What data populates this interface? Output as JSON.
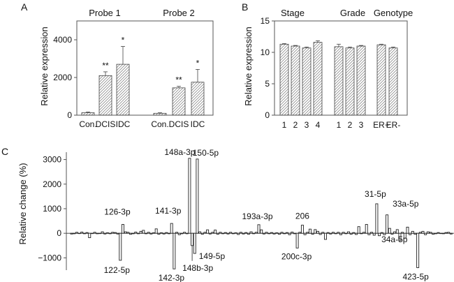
{
  "panels": [
    {
      "letter": "A"
    },
    {
      "letter": "B"
    },
    {
      "letter": "C"
    }
  ],
  "chart_data": [
    {
      "type": "bar",
      "panel": "A",
      "ylabel": "Relative expression",
      "ylim": [
        0,
        5000
      ],
      "yticks": [
        0,
        2000,
        4000
      ],
      "groups": [
        {
          "title": "Probe 1",
          "categories": [
            "Con.",
            "DCIS",
            "IDC"
          ],
          "values": [
            130,
            2100,
            2700
          ],
          "errors": [
            40,
            200,
            950
          ],
          "significance": [
            "",
            "**",
            "*"
          ]
        },
        {
          "title": "Probe 2",
          "categories": [
            "Con.",
            "DCIS",
            "IDC"
          ],
          "values": [
            100,
            1450,
            1750
          ],
          "errors": [
            30,
            80,
            680
          ],
          "significance": [
            "",
            "**",
            "*"
          ]
        }
      ]
    },
    {
      "type": "bar",
      "panel": "B",
      "ylabel": "Relative expression",
      "ylim": [
        0,
        15
      ],
      "yticks": [
        0,
        5,
        10,
        15
      ],
      "groups": [
        {
          "title": "Stage",
          "categories": [
            "1",
            "2",
            "3",
            "4"
          ],
          "values": [
            11.3,
            11.0,
            10.7,
            11.6
          ],
          "errors": [
            0.1,
            0.1,
            0.15,
            0.25
          ]
        },
        {
          "title": "Grade",
          "categories": [
            "1",
            "2",
            "3"
          ],
          "values": [
            10.9,
            10.7,
            11.0
          ],
          "errors": [
            0.4,
            0.15,
            0.1
          ]
        },
        {
          "title": "Genotype",
          "categories": [
            "ER+",
            "ER-"
          ],
          "values": [
            11.2,
            10.7
          ],
          "errors": [
            0.1,
            0.15
          ]
        }
      ]
    },
    {
      "type": "bar",
      "panel": "C",
      "ylabel": "Relative change (%)",
      "ylim": [
        -1500,
        3300
      ],
      "yticks": [
        -1000,
        0,
        1000,
        2000,
        3000
      ],
      "values": [
        -30,
        -20,
        40,
        -10,
        50,
        -20,
        30,
        -180,
        -10,
        40,
        -20,
        -10,
        60,
        -30,
        20,
        -20,
        40,
        30,
        -30,
        -1100,
        360,
        60,
        40,
        -40,
        -20,
        50,
        -20,
        80,
        120,
        -20,
        40,
        -30,
        20,
        180,
        -40,
        20,
        -30,
        30,
        -20,
        400,
        -1450,
        40,
        -60,
        -20,
        40,
        -20,
        3050,
        -500,
        -820,
        3020,
        60,
        -40,
        40,
        140,
        -30,
        40,
        130,
        -40,
        40,
        -20,
        30,
        -30,
        40,
        -20,
        20,
        -50,
        40,
        -30,
        30,
        -40,
        60,
        -20,
        40,
        350,
        140,
        -30,
        40,
        -20,
        30,
        -30,
        20,
        -40,
        40,
        -20,
        30,
        -60,
        50,
        -20,
        -600,
        40,
        330,
        -60,
        40,
        170,
        -40,
        150,
        80,
        -50,
        40,
        -250,
        30,
        -30,
        40,
        -20,
        40,
        -60,
        40,
        -20,
        60,
        -40,
        30,
        -50,
        270,
        -20,
        40,
        360,
        -60,
        40,
        -80,
        1200,
        -100,
        30,
        -60,
        750,
        200,
        -40,
        60,
        150,
        -300,
        40,
        -200,
        250,
        -60,
        80,
        -40,
        -1400,
        40,
        80,
        -60,
        60,
        40,
        -40,
        -20,
        30,
        -10,
        -20,
        30,
        40,
        -30
      ],
      "annotations": [
        {
          "label": "122-5p",
          "index": 19
        },
        {
          "label": "126-3p",
          "index": 20
        },
        {
          "label": "141-3p",
          "index": 39
        },
        {
          "label": "142-3p",
          "index": 40
        },
        {
          "label": "148a-3p",
          "index": 46
        },
        {
          "label": "148b-3p",
          "index": 47
        },
        {
          "label": "149-5p",
          "index": 48
        },
        {
          "label": "150-5p",
          "index": 49
        },
        {
          "label": "193a-3p",
          "index": 73
        },
        {
          "label": "200c-3p",
          "index": 88
        },
        {
          "label": "206",
          "index": 90
        },
        {
          "label": "31-5p",
          "index": 119
        },
        {
          "label": "33a-5p",
          "index": 123
        },
        {
          "label": "34a-5p",
          "index": 127
        },
        {
          "label": "423-5p",
          "index": 135
        }
      ]
    }
  ]
}
